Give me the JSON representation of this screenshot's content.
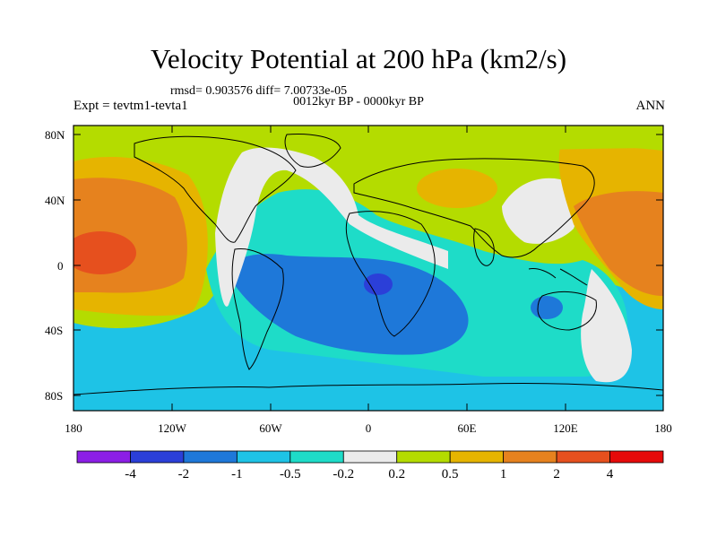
{
  "title": "Velocity Potential at 200 hPa (km2/s)",
  "stats": "rmsd= 0.903576 diff= 7.00733e-05",
  "period": "0012kyr BP - 0000kyr BP",
  "experiment": "Expt = tevtm1-tevta1",
  "season": "ANN",
  "lat_labels": [
    "80N",
    "40N",
    "0",
    "40S",
    "80S"
  ],
  "lon_labels": [
    "180",
    "120W",
    "60W",
    "0",
    "60E",
    "120E",
    "180"
  ],
  "colorbar": {
    "labels": [
      "-4",
      "-2",
      "-1",
      "-0.5",
      "-0.2",
      "0.2",
      "0.5",
      "1",
      "2",
      "4"
    ],
    "colors": [
      "#8c1ee6",
      "#2b3fd8",
      "#1e78d9",
      "#1ec3e6",
      "#1edcc8",
      "#ebebeb",
      "#b4dc00",
      "#e6b400",
      "#e6821e",
      "#e6501e",
      "#e60a0a"
    ]
  },
  "palette": {
    "sea_positive_mid": "#b4dc00",
    "east_positive": "#e6b400",
    "strong_positive": "#e6821e",
    "very_strong_positive": "#e6501e",
    "neutral": "#ebebeb",
    "weak_negative": "#1edcc8",
    "negative": "#1ec3e6",
    "strong_negative": "#1e78d9",
    "very_strong_negative": "#2b3fd8"
  }
}
